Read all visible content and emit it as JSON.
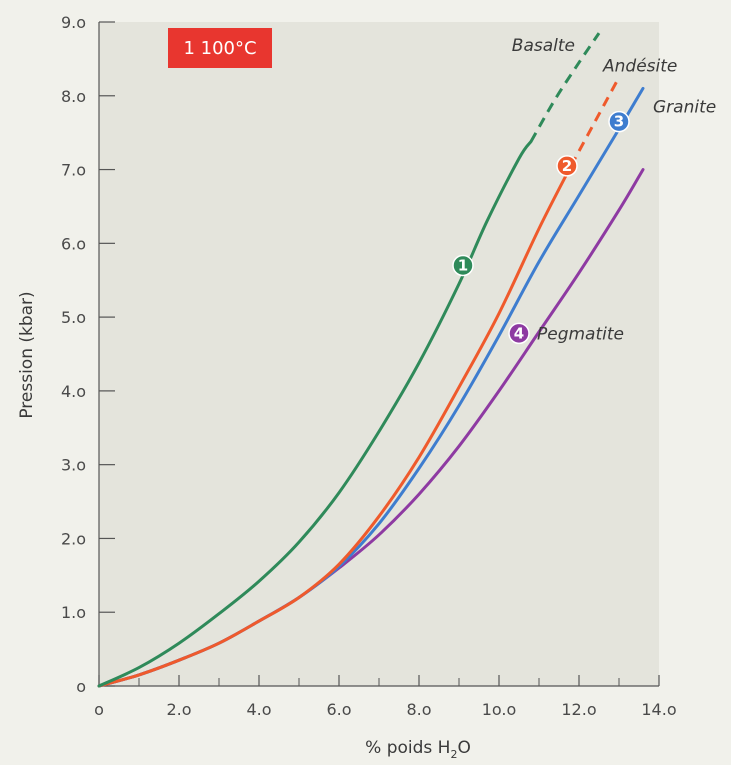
{
  "badge": {
    "text": "1 100°C",
    "color": "#e8362f"
  },
  "chart_data": {
    "type": "line",
    "xlabel": "% poids H",
    "xlabel_subscript": "2",
    "xlabel_suffix": "O",
    "ylabel": "Pression (kbar)",
    "xlim": [
      0,
      14
    ],
    "ylim": [
      0,
      9
    ],
    "x_ticks": [
      0,
      2,
      4,
      6,
      8,
      10,
      12,
      14
    ],
    "x_tick_labels": [
      "o",
      "2.o",
      "4.o",
      "6.o",
      "8.o",
      "1o.o",
      "12.o",
      "14.o"
    ],
    "y_ticks": [
      0,
      1,
      2,
      3,
      4,
      5,
      6,
      7,
      8,
      9
    ],
    "y_tick_labels": [
      "o",
      "1.o",
      "2.o",
      "3.o",
      "4.o",
      "5.o",
      "6.o",
      "7.o",
      "8.o",
      "9.o"
    ],
    "grid": false,
    "background_color": "#e4e4dc",
    "series": [
      {
        "name": "Basalte",
        "marker": "1",
        "color": "#2f8a5a",
        "x": [
          0,
          1,
          2,
          3,
          4,
          5,
          6,
          7,
          8,
          9,
          9.7,
          10.5,
          10.8
        ],
        "y": [
          0,
          0.25,
          0.58,
          0.98,
          1.42,
          1.95,
          2.62,
          3.45,
          4.38,
          5.45,
          6.3,
          7.15,
          7.38
        ],
        "dashed_x": [
          10.8,
          11.4,
          12.0,
          12.5
        ],
        "dashed_y": [
          7.38,
          7.95,
          8.45,
          8.85
        ],
        "marker_point": [
          9.1,
          5.7
        ],
        "label_anchor": "top-right"
      },
      {
        "name": "Andésite",
        "marker": "2",
        "color": "#ef5a2c",
        "x": [
          0,
          1,
          2,
          3,
          4,
          5,
          6,
          7,
          8,
          9,
          10,
          11,
          11.8
        ],
        "y": [
          0,
          0.15,
          0.35,
          0.58,
          0.88,
          1.2,
          1.65,
          2.3,
          3.1,
          4.05,
          5.05,
          6.2,
          7.05
        ],
        "dashed_x": [
          11.8,
          12.4,
          13.0
        ],
        "dashed_y": [
          7.05,
          7.65,
          8.25
        ],
        "marker_point": [
          11.7,
          7.05
        ],
        "label_anchor": "top-right"
      },
      {
        "name": "Granite",
        "marker": "3",
        "color": "#3e7dcf",
        "x": [
          0,
          1,
          2,
          3,
          4,
          5,
          6,
          7,
          8,
          9,
          10,
          11,
          12,
          13,
          13.6
        ],
        "y": [
          0,
          0.15,
          0.35,
          0.58,
          0.88,
          1.2,
          1.62,
          2.2,
          2.95,
          3.8,
          4.75,
          5.75,
          6.65,
          7.55,
          8.1
        ],
        "marker_point": [
          13.0,
          7.65
        ],
        "label_anchor": "right"
      },
      {
        "name": "Pegmatite",
        "marker": "4",
        "color": "#8e3aa2",
        "x": [
          0,
          1,
          2,
          3,
          4,
          5,
          6,
          7,
          8,
          9,
          10,
          11,
          12,
          13,
          13.6
        ],
        "y": [
          0,
          0.15,
          0.35,
          0.58,
          0.88,
          1.2,
          1.6,
          2.05,
          2.6,
          3.25,
          4.0,
          4.8,
          5.6,
          6.45,
          7.0
        ],
        "marker_point": [
          10.5,
          4.78
        ],
        "label_anchor": "right"
      }
    ]
  }
}
